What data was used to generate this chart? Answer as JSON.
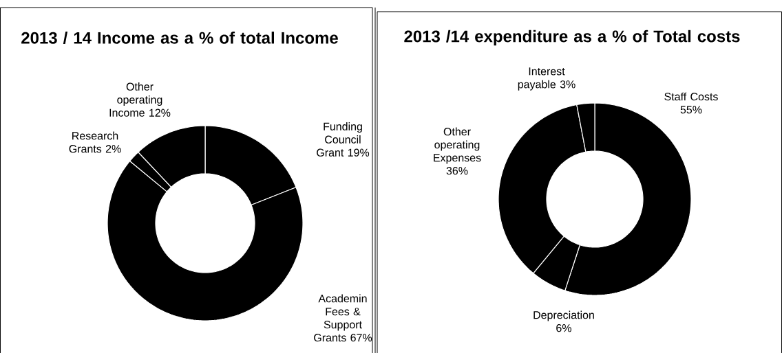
{
  "chart_data": [
    {
      "type": "donut",
      "title": "2013 / 14 Income as a % of total Income",
      "categories": [
        "Funding Council Grant",
        "Academin Fees & Support Grants",
        "Research Grants",
        "Other operating Income"
      ],
      "values": [
        19,
        67,
        2,
        12
      ],
      "value_labels": [
        "19%",
        "67%",
        "2%",
        "12%"
      ],
      "colors": [
        "#000000",
        "#000000",
        "#000000",
        "#000000"
      ]
    },
    {
      "type": "donut",
      "title": "2013 /14 expenditure as a % of Total costs",
      "categories": [
        "Staff Costs",
        "Depreciation",
        "Other operating Expenses",
        "Interest payable"
      ],
      "values": [
        55,
        6,
        36,
        3
      ],
      "value_labels": [
        "55%",
        "6%",
        "36%",
        "3%"
      ],
      "colors": [
        "#000000",
        "#000000",
        "#000000",
        "#000000"
      ]
    }
  ]
}
